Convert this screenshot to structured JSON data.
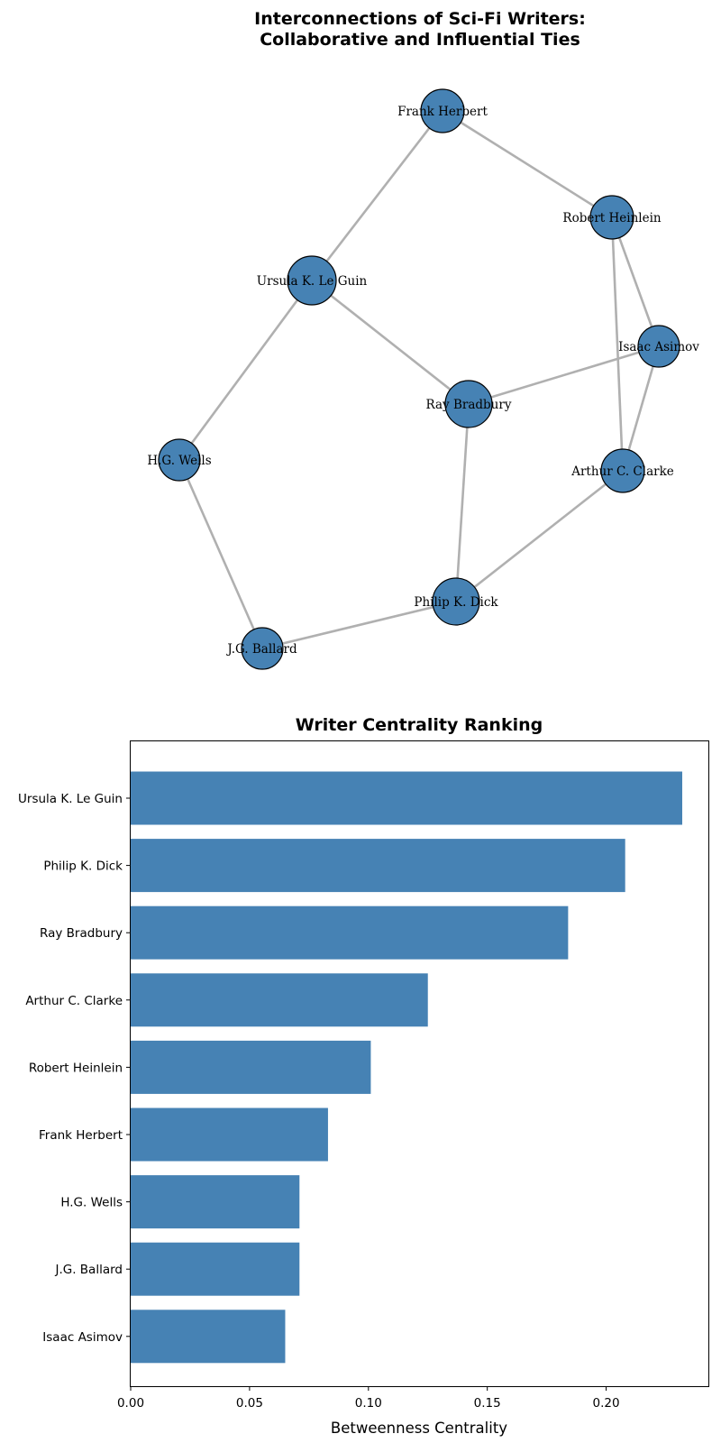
{
  "chart_data": [
    {
      "type": "network",
      "title": "Interconnections of Sci-Fi Writers:\nCollaborative and Influential Ties",
      "node_color": "#4682b4",
      "edge_color": "#b0b0b0",
      "nodes": [
        {
          "id": "Frank Herbert"
        },
        {
          "id": "Robert Heinlein"
        },
        {
          "id": "Ursula K. Le Guin"
        },
        {
          "id": "Isaac Asimov"
        },
        {
          "id": "Ray Bradbury"
        },
        {
          "id": "H.G. Wells"
        },
        {
          "id": "Arthur C. Clarke"
        },
        {
          "id": "Philip K. Dick"
        },
        {
          "id": "J.G. Ballard"
        }
      ],
      "edges": [
        [
          "Frank Herbert",
          "Robert Heinlein"
        ],
        [
          "Frank Herbert",
          "Ursula K. Le Guin"
        ],
        [
          "Robert Heinlein",
          "Isaac Asimov"
        ],
        [
          "Robert Heinlein",
          "Arthur C. Clarke"
        ],
        [
          "Isaac Asimov",
          "Arthur C. Clarke"
        ],
        [
          "Isaac Asimov",
          "Ray Bradbury"
        ],
        [
          "Ursula K. Le Guin",
          "Ray Bradbury"
        ],
        [
          "Ursula K. Le Guin",
          "H.G. Wells"
        ],
        [
          "H.G. Wells",
          "J.G. Ballard"
        ],
        [
          "Ray Bradbury",
          "Philip K. Dick"
        ],
        [
          "Arthur C. Clarke",
          "Philip K. Dick"
        ],
        [
          "Philip K. Dick",
          "J.G. Ballard"
        ]
      ]
    },
    {
      "type": "bar",
      "orientation": "horizontal",
      "title": "Writer Centrality Ranking",
      "xlabel": "Betweenness Centrality",
      "ylabel": "",
      "color": "#4682b4",
      "categories": [
        "Ursula K. Le Guin",
        "Philip K. Dick",
        "Ray Bradbury",
        "Arthur C. Clarke",
        "Robert Heinlein",
        "Frank Herbert",
        "H.G. Wells",
        "J.G. Ballard",
        "Isaac Asimov"
      ],
      "values": [
        0.232,
        0.208,
        0.184,
        0.125,
        0.101,
        0.083,
        0.071,
        0.071,
        0.065
      ],
      "xlim": [
        0,
        0.243
      ],
      "xticks": [
        "0.00",
        "0.05",
        "0.10",
        "0.15",
        "0.20"
      ]
    }
  ]
}
